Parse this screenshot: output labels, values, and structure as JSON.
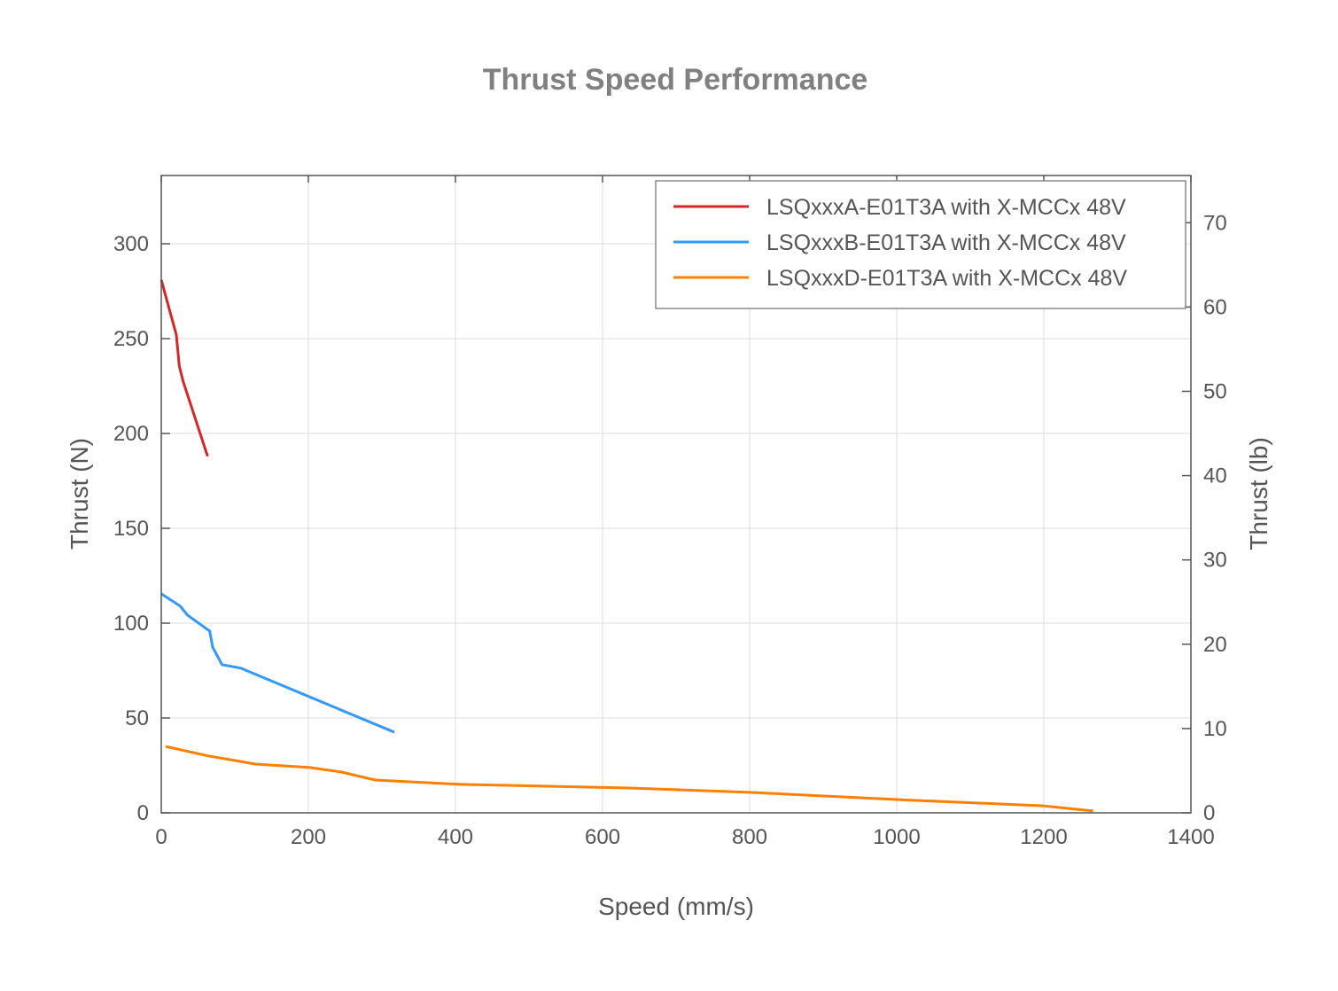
{
  "chart_data": {
    "type": "line",
    "title": "Thrust Speed Performance",
    "xlabel": "Speed (mm/s)",
    "ylabel": "Thrust (N)",
    "y2label": "Thrust (lb)",
    "xlim": [
      0,
      1400
    ],
    "ylim": [
      0,
      336
    ],
    "y2lim": [
      0,
      75.6
    ],
    "xticks": [
      0,
      200,
      400,
      600,
      800,
      1000,
      1200,
      1400
    ],
    "yticks": [
      0,
      50,
      100,
      150,
      200,
      250,
      300
    ],
    "y2ticks": [
      0,
      10,
      20,
      30,
      40,
      50,
      60,
      70
    ],
    "grid": true,
    "legend_position": "top-right",
    "series": [
      {
        "name": "LSQxxxA-E01T3A with X-MCCx 48V",
        "color": "#d62728",
        "x": [
          0,
          20.5,
          24.5,
          29.7,
          63
        ],
        "y": [
          281,
          252,
          235.5,
          227.5,
          188
        ]
      },
      {
        "name": "LSQxxxB-E01T3A with X-MCCx 48V",
        "color": "#3399ff",
        "x": [
          0,
          25.7,
          35.7,
          65.9,
          69.9,
          82.7,
          108,
          317
        ],
        "y": [
          115.5,
          109,
          104.2,
          95.8,
          87.3,
          78.1,
          76.3,
          42.5
        ]
      },
      {
        "name": "LSQxxxD-E01T3A with X-MCCx 48V",
        "color": "#ff8000",
        "x": [
          6,
          64,
          128,
          202,
          245,
          291,
          407,
          636,
          800,
          1000,
          1199,
          1267
        ],
        "y": [
          35,
          30,
          25.7,
          23.9,
          21.5,
          17.3,
          15,
          13.1,
          10.8,
          7,
          3.7,
          1
        ]
      }
    ]
  }
}
